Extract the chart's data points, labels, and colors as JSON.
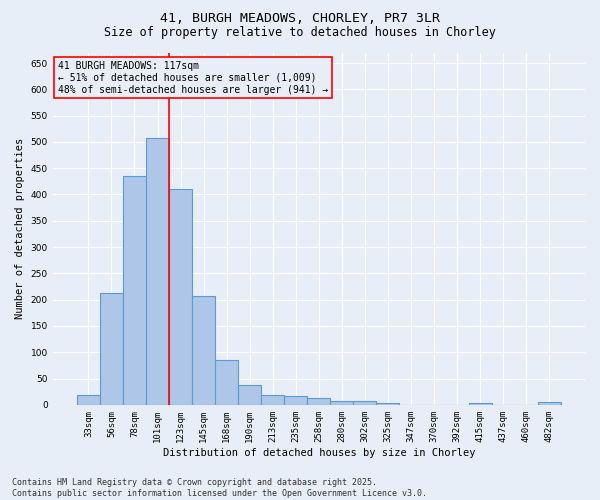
{
  "title": "41, BURGH MEADOWS, CHORLEY, PR7 3LR",
  "subtitle": "Size of property relative to detached houses in Chorley",
  "xlabel": "Distribution of detached houses by size in Chorley",
  "ylabel": "Number of detached properties",
  "categories": [
    "33sqm",
    "56sqm",
    "78sqm",
    "101sqm",
    "123sqm",
    "145sqm",
    "168sqm",
    "190sqm",
    "213sqm",
    "235sqm",
    "258sqm",
    "280sqm",
    "302sqm",
    "325sqm",
    "347sqm",
    "370sqm",
    "392sqm",
    "415sqm",
    "437sqm",
    "460sqm",
    "482sqm"
  ],
  "values": [
    18,
    213,
    435,
    507,
    410,
    207,
    85,
    38,
    18,
    16,
    13,
    7,
    7,
    4,
    0,
    0,
    0,
    3,
    0,
    0,
    5
  ],
  "bar_color": "#aec6e8",
  "bar_edge_color": "#5b9bd5",
  "bar_edge_width": 0.8,
  "bg_color": "#e8eef7",
  "grid_color": "#ffffff",
  "vline_x": 3.5,
  "vline_color": "red",
  "annotation_line1": "41 BURGH MEADOWS: 117sqm",
  "annotation_line2": "← 51% of detached houses are smaller (1,009)",
  "annotation_line3": "48% of semi-detached houses are larger (941) →",
  "annotation_box_color": "red",
  "ylim": [
    0,
    670
  ],
  "yticks": [
    0,
    50,
    100,
    150,
    200,
    250,
    300,
    350,
    400,
    450,
    500,
    550,
    600,
    650
  ],
  "footer": "Contains HM Land Registry data © Crown copyright and database right 2025.\nContains public sector information licensed under the Open Government Licence v3.0.",
  "title_fontsize": 9.5,
  "subtitle_fontsize": 8.5,
  "axis_label_fontsize": 7.5,
  "tick_fontsize": 6.5,
  "annotation_fontsize": 7,
  "footer_fontsize": 6
}
